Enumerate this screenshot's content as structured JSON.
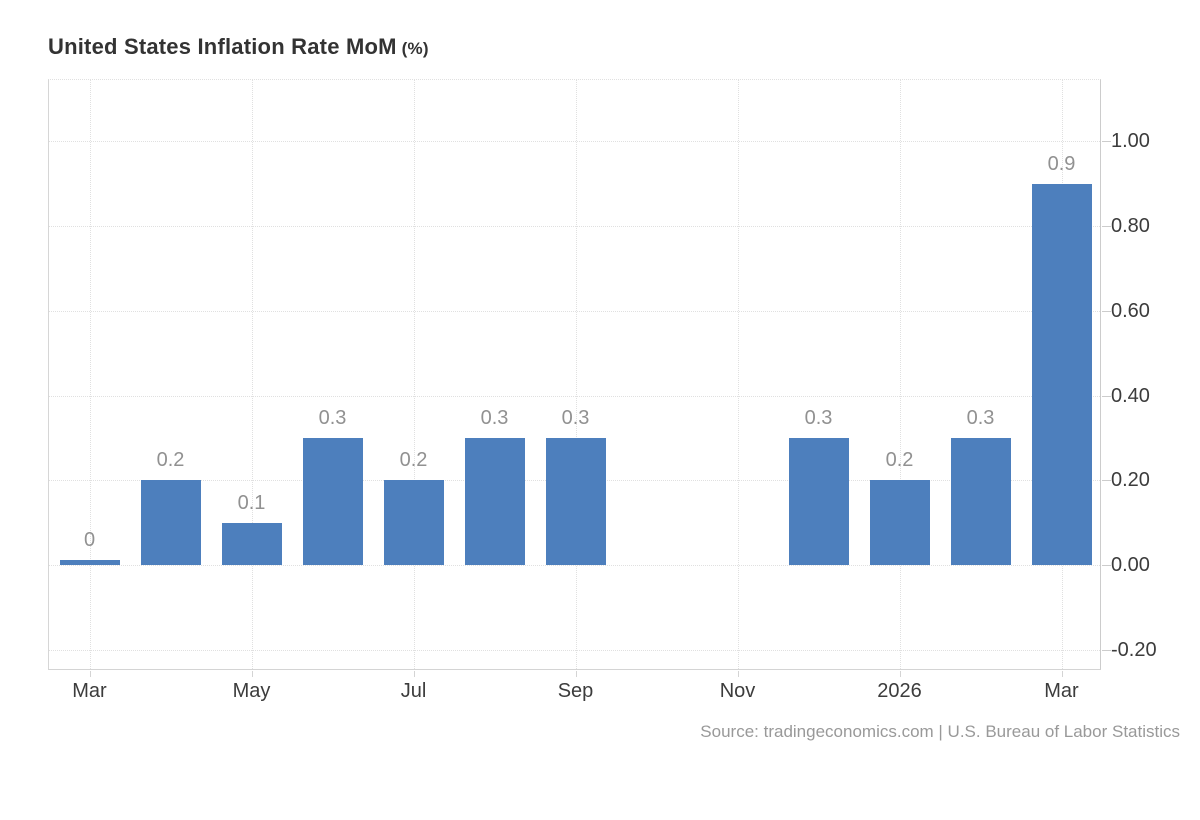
{
  "title": {
    "main": "United States Inflation Rate MoM",
    "suffix": "(%)"
  },
  "source": "Source: tradingeconomics.com | U.S. Bureau of Labor Statistics",
  "colors": {
    "bar": "#4d7fbd",
    "value_label": "#919191",
    "axis_label": "#3c3c3c",
    "title_text": "#333333",
    "grid": "#e0e0e0",
    "source_text": "#999999"
  },
  "chart_data": {
    "type": "bar",
    "title": "United States Inflation Rate MoM (%)",
    "unit": "%",
    "num_slots": 13,
    "points": [
      {
        "slot": 0,
        "value": 0,
        "label": "0"
      },
      {
        "slot": 1,
        "value": 0.2,
        "label": "0.2"
      },
      {
        "slot": 2,
        "value": 0.1,
        "label": "0.1"
      },
      {
        "slot": 3,
        "value": 0.3,
        "label": "0.3"
      },
      {
        "slot": 4,
        "value": 0.2,
        "label": "0.2"
      },
      {
        "slot": 5,
        "value": 0.3,
        "label": "0.3"
      },
      {
        "slot": 6,
        "value": 0.3,
        "label": "0.3"
      },
      {
        "slot": 9,
        "value": 0.3,
        "label": "0.3"
      },
      {
        "slot": 10,
        "value": 0.2,
        "label": "0.2"
      },
      {
        "slot": 11,
        "value": 0.3,
        "label": "0.3"
      },
      {
        "slot": 12,
        "value": 0.9,
        "label": "0.9"
      }
    ],
    "missing_slots": [
      7,
      8
    ],
    "x_ticks": [
      {
        "slot": 0,
        "label": "Mar"
      },
      {
        "slot": 2,
        "label": "May"
      },
      {
        "slot": 4,
        "label": "Jul"
      },
      {
        "slot": 6,
        "label": "Sep"
      },
      {
        "slot": 8,
        "label": "Nov"
      },
      {
        "slot": 10,
        "label": "2026"
      },
      {
        "slot": 12,
        "label": "Mar"
      }
    ],
    "y_ticks": [
      {
        "value": 1.0,
        "label": "1.00"
      },
      {
        "value": 0.8,
        "label": "0.80"
      },
      {
        "value": 0.6,
        "label": "0.60"
      },
      {
        "value": 0.4,
        "label": "0.40"
      },
      {
        "value": 0.2,
        "label": "0.20"
      },
      {
        "value": 0.0,
        "label": "0.00"
      },
      {
        "value": -0.2,
        "label": "-0.20"
      }
    ],
    "ylim": [
      -0.25,
      1.145
    ],
    "grid": true,
    "legend": false,
    "y_axis_side": "right"
  }
}
